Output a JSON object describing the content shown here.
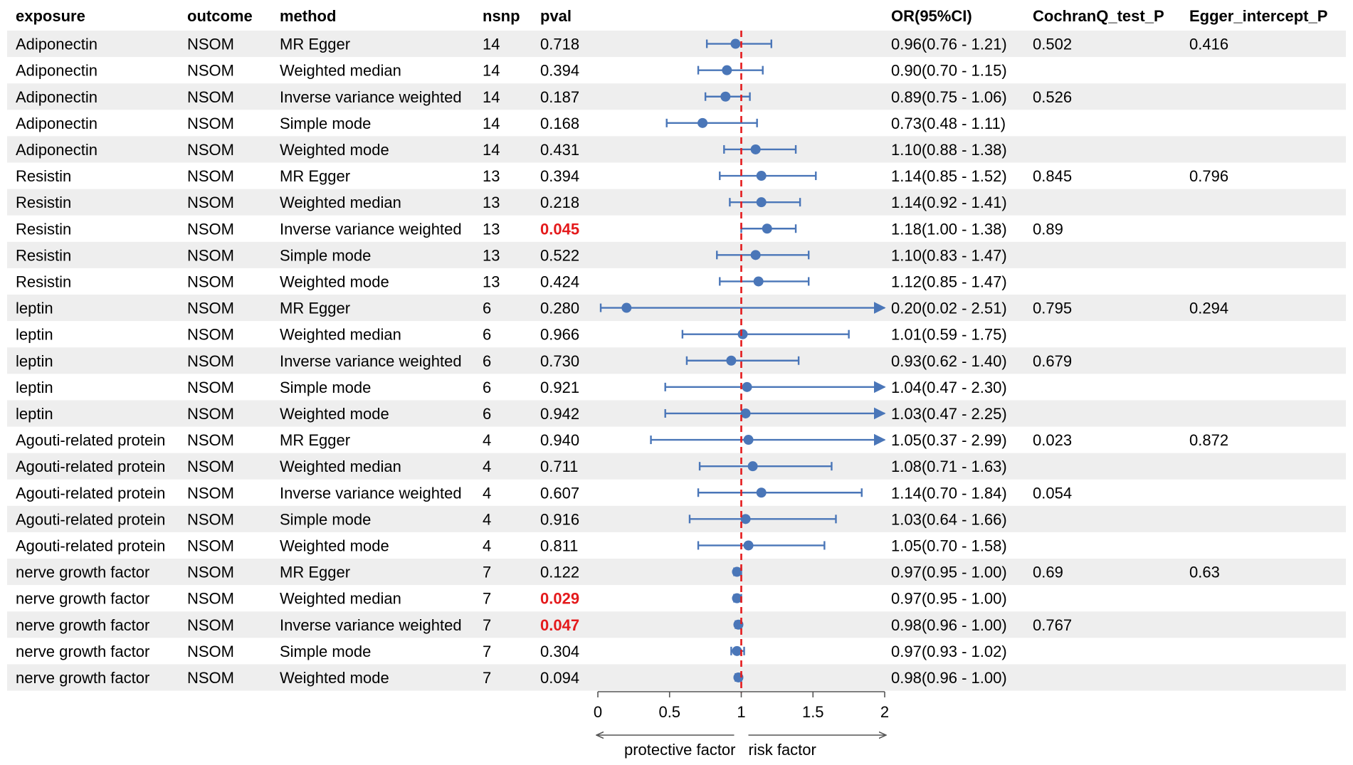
{
  "chart_data": {
    "type": "forest",
    "headers": {
      "exposure": "exposure",
      "outcome": "outcome",
      "method": "method",
      "nsnp": "nsnp",
      "pval": "pval",
      "or_ci": "OR(95%CI)",
      "cochran": "CochranQ_test_P",
      "egger": "Egger_intercept_P"
    },
    "xaxis": {
      "min": 0,
      "max": 2,
      "reference": 1,
      "ticks": [
        "0",
        "0.5",
        "1",
        "1.5",
        "2"
      ],
      "tick_values": [
        0,
        0.5,
        1,
        1.5,
        2
      ],
      "left_label": "protective factor",
      "right_label": "risk factor"
    },
    "colors": {
      "point": "#4a76b8",
      "reference_line": "#e41a1c",
      "significant_p": "#e41a1c",
      "stripe": "#eeeeee"
    },
    "rows": [
      {
        "exposure": "Adiponectin",
        "outcome": "NSOM",
        "method": "MR Egger",
        "nsnp": "14",
        "pval": "0.718",
        "or": 0.96,
        "lo": 0.76,
        "hi": 1.21,
        "or_ci": "0.96(0.76 - 1.21)",
        "cochran": "0.502",
        "egger": "0.416",
        "sig": false
      },
      {
        "exposure": "Adiponectin",
        "outcome": "NSOM",
        "method": "Weighted median",
        "nsnp": "14",
        "pval": "0.394",
        "or": 0.9,
        "lo": 0.7,
        "hi": 1.15,
        "or_ci": "0.90(0.70 - 1.15)",
        "cochran": "",
        "egger": "",
        "sig": false
      },
      {
        "exposure": "Adiponectin",
        "outcome": "NSOM",
        "method": "Inverse variance weighted",
        "nsnp": "14",
        "pval": "0.187",
        "or": 0.89,
        "lo": 0.75,
        "hi": 1.06,
        "or_ci": "0.89(0.75 - 1.06)",
        "cochran": "0.526",
        "egger": "",
        "sig": false
      },
      {
        "exposure": "Adiponectin",
        "outcome": "NSOM",
        "method": "Simple mode",
        "nsnp": "14",
        "pval": "0.168",
        "or": 0.73,
        "lo": 0.48,
        "hi": 1.11,
        "or_ci": "0.73(0.48 - 1.11)",
        "cochran": "",
        "egger": "",
        "sig": false
      },
      {
        "exposure": "Adiponectin",
        "outcome": "NSOM",
        "method": "Weighted mode",
        "nsnp": "14",
        "pval": "0.431",
        "or": 1.1,
        "lo": 0.88,
        "hi": 1.38,
        "or_ci": "1.10(0.88 - 1.38)",
        "cochran": "",
        "egger": "",
        "sig": false
      },
      {
        "exposure": "Resistin",
        "outcome": "NSOM",
        "method": "MR Egger",
        "nsnp": "13",
        "pval": "0.394",
        "or": 1.14,
        "lo": 0.85,
        "hi": 1.52,
        "or_ci": "1.14(0.85 - 1.52)",
        "cochran": "0.845",
        "egger": "0.796",
        "sig": false
      },
      {
        "exposure": "Resistin",
        "outcome": "NSOM",
        "method": "Weighted median",
        "nsnp": "13",
        "pval": "0.218",
        "or": 1.14,
        "lo": 0.92,
        "hi": 1.41,
        "or_ci": "1.14(0.92 - 1.41)",
        "cochran": "",
        "egger": "",
        "sig": false
      },
      {
        "exposure": "Resistin",
        "outcome": "NSOM",
        "method": "Inverse variance weighted",
        "nsnp": "13",
        "pval": "0.045",
        "or": 1.18,
        "lo": 1.0,
        "hi": 1.38,
        "or_ci": "1.18(1.00 - 1.38)",
        "cochran": "0.89",
        "egger": "",
        "sig": true
      },
      {
        "exposure": "Resistin",
        "outcome": "NSOM",
        "method": "Simple mode",
        "nsnp": "13",
        "pval": "0.522",
        "or": 1.1,
        "lo": 0.83,
        "hi": 1.47,
        "or_ci": "1.10(0.83 - 1.47)",
        "cochran": "",
        "egger": "",
        "sig": false
      },
      {
        "exposure": "Resistin",
        "outcome": "NSOM",
        "method": "Weighted mode",
        "nsnp": "13",
        "pval": "0.424",
        "or": 1.12,
        "lo": 0.85,
        "hi": 1.47,
        "or_ci": "1.12(0.85 - 1.47)",
        "cochran": "",
        "egger": "",
        "sig": false
      },
      {
        "exposure": "leptin",
        "outcome": "NSOM",
        "method": "MR Egger",
        "nsnp": "6",
        "pval": "0.280",
        "or": 0.2,
        "lo": 0.02,
        "hi": 2.51,
        "or_ci": "0.20(0.02 - 2.51)",
        "cochran": "0.795",
        "egger": "0.294",
        "sig": false
      },
      {
        "exposure": "leptin",
        "outcome": "NSOM",
        "method": "Weighted median",
        "nsnp": "6",
        "pval": "0.966",
        "or": 1.01,
        "lo": 0.59,
        "hi": 1.75,
        "or_ci": "1.01(0.59 - 1.75)",
        "cochran": "",
        "egger": "",
        "sig": false
      },
      {
        "exposure": "leptin",
        "outcome": "NSOM",
        "method": "Inverse variance weighted",
        "nsnp": "6",
        "pval": "0.730",
        "or": 0.93,
        "lo": 0.62,
        "hi": 1.4,
        "or_ci": "0.93(0.62 - 1.40)",
        "cochran": "0.679",
        "egger": "",
        "sig": false
      },
      {
        "exposure": "leptin",
        "outcome": "NSOM",
        "method": "Simple mode",
        "nsnp": "6",
        "pval": "0.921",
        "or": 1.04,
        "lo": 0.47,
        "hi": 2.3,
        "or_ci": "1.04(0.47 - 2.30)",
        "cochran": "",
        "egger": "",
        "sig": false
      },
      {
        "exposure": "leptin",
        "outcome": "NSOM",
        "method": "Weighted mode",
        "nsnp": "6",
        "pval": "0.942",
        "or": 1.03,
        "lo": 0.47,
        "hi": 2.25,
        "or_ci": "1.03(0.47 - 2.25)",
        "cochran": "",
        "egger": "",
        "sig": false
      },
      {
        "exposure": "Agouti-related protein",
        "outcome": "NSOM",
        "method": "MR Egger",
        "nsnp": "4",
        "pval": "0.940",
        "or": 1.05,
        "lo": 0.37,
        "hi": 2.99,
        "or_ci": "1.05(0.37 - 2.99)",
        "cochran": "0.023",
        "egger": "0.872",
        "sig": false
      },
      {
        "exposure": "Agouti-related protein",
        "outcome": "NSOM",
        "method": "Weighted median",
        "nsnp": "4",
        "pval": "0.711",
        "or": 1.08,
        "lo": 0.71,
        "hi": 1.63,
        "or_ci": "1.08(0.71 - 1.63)",
        "cochran": "",
        "egger": "",
        "sig": false
      },
      {
        "exposure": "Agouti-related protein",
        "outcome": "NSOM",
        "method": "Inverse variance weighted",
        "nsnp": "4",
        "pval": "0.607",
        "or": 1.14,
        "lo": 0.7,
        "hi": 1.84,
        "or_ci": "1.14(0.70 - 1.84)",
        "cochran": "0.054",
        "egger": "",
        "sig": false
      },
      {
        "exposure": "Agouti-related protein",
        "outcome": "NSOM",
        "method": "Simple mode",
        "nsnp": "4",
        "pval": "0.916",
        "or": 1.03,
        "lo": 0.64,
        "hi": 1.66,
        "or_ci": "1.03(0.64 - 1.66)",
        "cochran": "",
        "egger": "",
        "sig": false
      },
      {
        "exposure": "Agouti-related protein",
        "outcome": "NSOM",
        "method": "Weighted mode",
        "nsnp": "4",
        "pval": "0.811",
        "or": 1.05,
        "lo": 0.7,
        "hi": 1.58,
        "or_ci": "1.05(0.70 - 1.58)",
        "cochran": "",
        "egger": "",
        "sig": false
      },
      {
        "exposure": "nerve growth factor",
        "outcome": "NSOM",
        "method": "MR Egger",
        "nsnp": "7",
        "pval": "0.122",
        "or": 0.97,
        "lo": 0.95,
        "hi": 1.0,
        "or_ci": "0.97(0.95 - 1.00)",
        "cochran": "0.69",
        "egger": "0.63",
        "sig": false
      },
      {
        "exposure": "nerve growth factor",
        "outcome": "NSOM",
        "method": "Weighted median",
        "nsnp": "7",
        "pval": "0.029",
        "or": 0.97,
        "lo": 0.95,
        "hi": 1.0,
        "or_ci": "0.97(0.95 - 1.00)",
        "cochran": "",
        "egger": "",
        "sig": true
      },
      {
        "exposure": "nerve growth factor",
        "outcome": "NSOM",
        "method": "Inverse variance weighted",
        "nsnp": "7",
        "pval": "0.047",
        "or": 0.98,
        "lo": 0.96,
        "hi": 1.0,
        "or_ci": "0.98(0.96 - 1.00)",
        "cochran": "0.767",
        "egger": "",
        "sig": true
      },
      {
        "exposure": "nerve growth factor",
        "outcome": "NSOM",
        "method": "Simple mode",
        "nsnp": "7",
        "pval": "0.304",
        "or": 0.97,
        "lo": 0.93,
        "hi": 1.02,
        "or_ci": "0.97(0.93 - 1.02)",
        "cochran": "",
        "egger": "",
        "sig": false
      },
      {
        "exposure": "nerve growth factor",
        "outcome": "NSOM",
        "method": "Weighted mode",
        "nsnp": "7",
        "pval": "0.094",
        "or": 0.98,
        "lo": 0.96,
        "hi": 1.0,
        "or_ci": "0.98(0.96 - 1.00)",
        "cochran": "",
        "egger": "",
        "sig": false
      }
    ]
  }
}
